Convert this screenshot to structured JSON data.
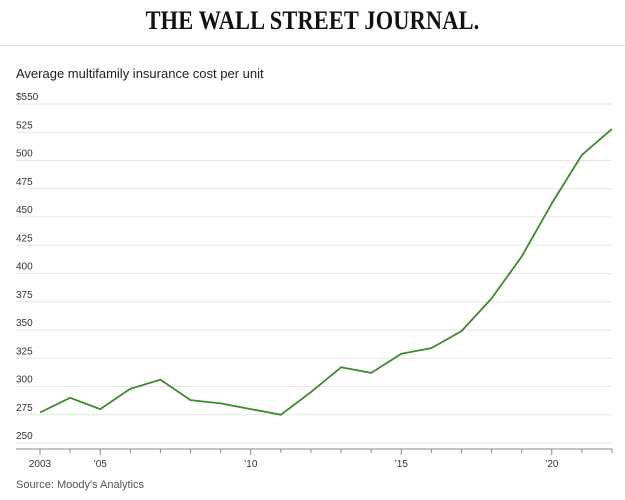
{
  "masthead": "THE WALL STREET JOURNAL.",
  "colors": {
    "line": "#3c8a2e",
    "grid": "#e6e6e6",
    "axis": "#888888"
  },
  "chart_data": {
    "type": "line",
    "title": "Average multifamily insurance cost per unit",
    "source": "Source: Moody's Analytics",
    "xlabel": "",
    "ylabel": "",
    "xlim": [
      2003,
      2022
    ],
    "ylim": [
      250,
      550
    ],
    "yticks": [
      {
        "value": 550,
        "label": "$550"
      },
      {
        "value": 525,
        "label": "525"
      },
      {
        "value": 500,
        "label": "500"
      },
      {
        "value": 475,
        "label": "475"
      },
      {
        "value": 450,
        "label": "450"
      },
      {
        "value": 425,
        "label": "425"
      },
      {
        "value": 400,
        "label": "400"
      },
      {
        "value": 375,
        "label": "375"
      },
      {
        "value": 350,
        "label": "350"
      },
      {
        "value": 325,
        "label": "325"
      },
      {
        "value": 300,
        "label": "300"
      },
      {
        "value": 275,
        "label": "275"
      },
      {
        "value": 250,
        "label": "250"
      }
    ],
    "xticks": [
      {
        "value": 2003,
        "label": "2003"
      },
      {
        "value": 2005,
        "label": "’05"
      },
      {
        "value": 2010,
        "label": "’10"
      },
      {
        "value": 2015,
        "label": "’15"
      },
      {
        "value": 2020,
        "label": "’20"
      }
    ],
    "x": [
      2003,
      2004,
      2005,
      2006,
      2007,
      2008,
      2009,
      2010,
      2011,
      2012,
      2013,
      2014,
      2015,
      2016,
      2017,
      2018,
      2019,
      2020,
      2021,
      2022
    ],
    "series": [
      {
        "name": "Average multifamily insurance cost per unit",
        "values": [
          277,
          290,
          280,
          298,
          306,
          288,
          285,
          280,
          275,
          295,
          317,
          312,
          329,
          334,
          349,
          378,
          415,
          462,
          505,
          528
        ]
      }
    ]
  }
}
